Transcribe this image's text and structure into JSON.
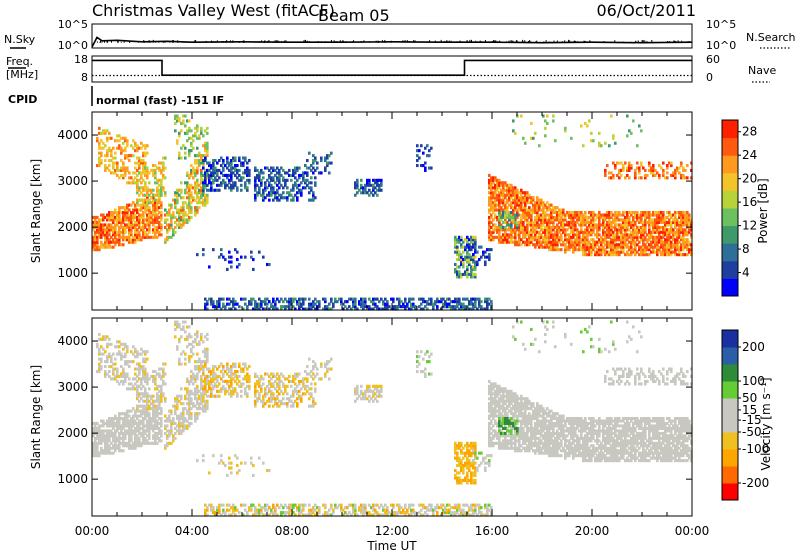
{
  "header": {
    "station": "Christmas Valley West (fitACF)",
    "beam": "Beam 05",
    "date": "06/Oct/2011"
  },
  "strip_labels": {
    "nsky": "N.Sky",
    "nsearch": "N.Search",
    "freq": "Freq.",
    "freq_unit": "[MHz]",
    "nave": "Nave",
    "cpid": "CPID",
    "cpid_value": "normal (fast) -151 IF",
    "nsky_ticks": [
      "10^5",
      "10^0"
    ],
    "nsearch_ticks": [
      "10^5",
      "10^0"
    ],
    "freq_ticks": [
      "18",
      "8"
    ],
    "nave_ticks": [
      "60",
      "0"
    ]
  },
  "colors": {
    "power": [
      "#0000ff",
      "#1f3fa0",
      "#2e6f9a",
      "#3f9a6a",
      "#6cc060",
      "#b8d23a",
      "#f2c42a",
      "#ff9a1f",
      "#ff5a10",
      "#ff2000"
    ],
    "velocity": [
      "#ff0000",
      "#ff6a00",
      "#ffa500",
      "#f0c020",
      "#c8c8c0",
      "#c8c8c0",
      "#66cc33",
      "#2e8b3a",
      "#2a5fa8",
      "#1a2fa0"
    ]
  },
  "chart_data": [
    {
      "type": "line",
      "name": "nsky-nsearch",
      "ylabel": "N.Sky",
      "ylabel_right": "N.Search",
      "x": [
        0,
        0.2,
        0.4,
        1,
        2,
        3,
        4,
        6,
        8,
        10,
        12,
        14,
        15,
        16,
        18,
        20,
        22,
        24
      ],
      "series": [
        {
          "name": "N.Sky",
          "values": [
            0.2,
            2.2,
            1.5,
            1.6,
            1.3,
            1.4,
            1.2,
            1.3,
            1.2,
            1.2,
            1.3,
            1.2,
            1.2,
            1.2,
            1.1,
            1.2,
            1.1,
            1.2
          ]
        }
      ],
      "ylim": [
        0,
        5
      ]
    },
    {
      "type": "line",
      "name": "freq-nave",
      "ylabel": "Freq.",
      "ylabel_right": "Nave",
      "series": [
        {
          "name": "Freq.",
          "x": [
            0,
            2.8,
            2.8,
            14.9,
            14.9,
            24
          ],
          "values": [
            16.3,
            16.3,
            10.6,
            10.6,
            16.3,
            16.3
          ]
        },
        {
          "name": "Nave",
          "x": [
            0,
            24
          ],
          "values": [
            15,
            15
          ]
        }
      ],
      "ylim": [
        8,
        18
      ],
      "ylim_right": [
        0,
        60
      ]
    },
    {
      "type": "heatmap",
      "name": "power",
      "ylabel": "Slant Range [km]",
      "xlim": [
        0,
        24
      ],
      "ylim": [
        200,
        4500
      ],
      "yticks": [
        "1000",
        "2000",
        "3000",
        "4000"
      ],
      "colorbar_label": "Power [dB]",
      "colorbar_ticks": [
        "4",
        "8",
        "12",
        "16",
        "20",
        "24",
        "28"
      ],
      "colorbar_range": [
        0,
        30
      ]
    },
    {
      "type": "heatmap",
      "name": "velocity",
      "ylabel": "Slant Range [km]",
      "xlabel": "Time UT",
      "xlim": [
        0,
        24
      ],
      "ylim": [
        200,
        4500
      ],
      "yticks": [
        "1000",
        "2000",
        "3000",
        "4000"
      ],
      "xticks": [
        "00:00",
        "04:00",
        "08:00",
        "12:00",
        "16:00",
        "20:00",
        "00:00"
      ],
      "colorbar_label": "Velocity [m s⁻¹]",
      "colorbar_ticks": [
        "-200",
        "-100",
        "-50",
        "-15",
        "15",
        "50",
        "100",
        "200"
      ],
      "colorbar_range": [
        -250,
        250
      ]
    }
  ]
}
